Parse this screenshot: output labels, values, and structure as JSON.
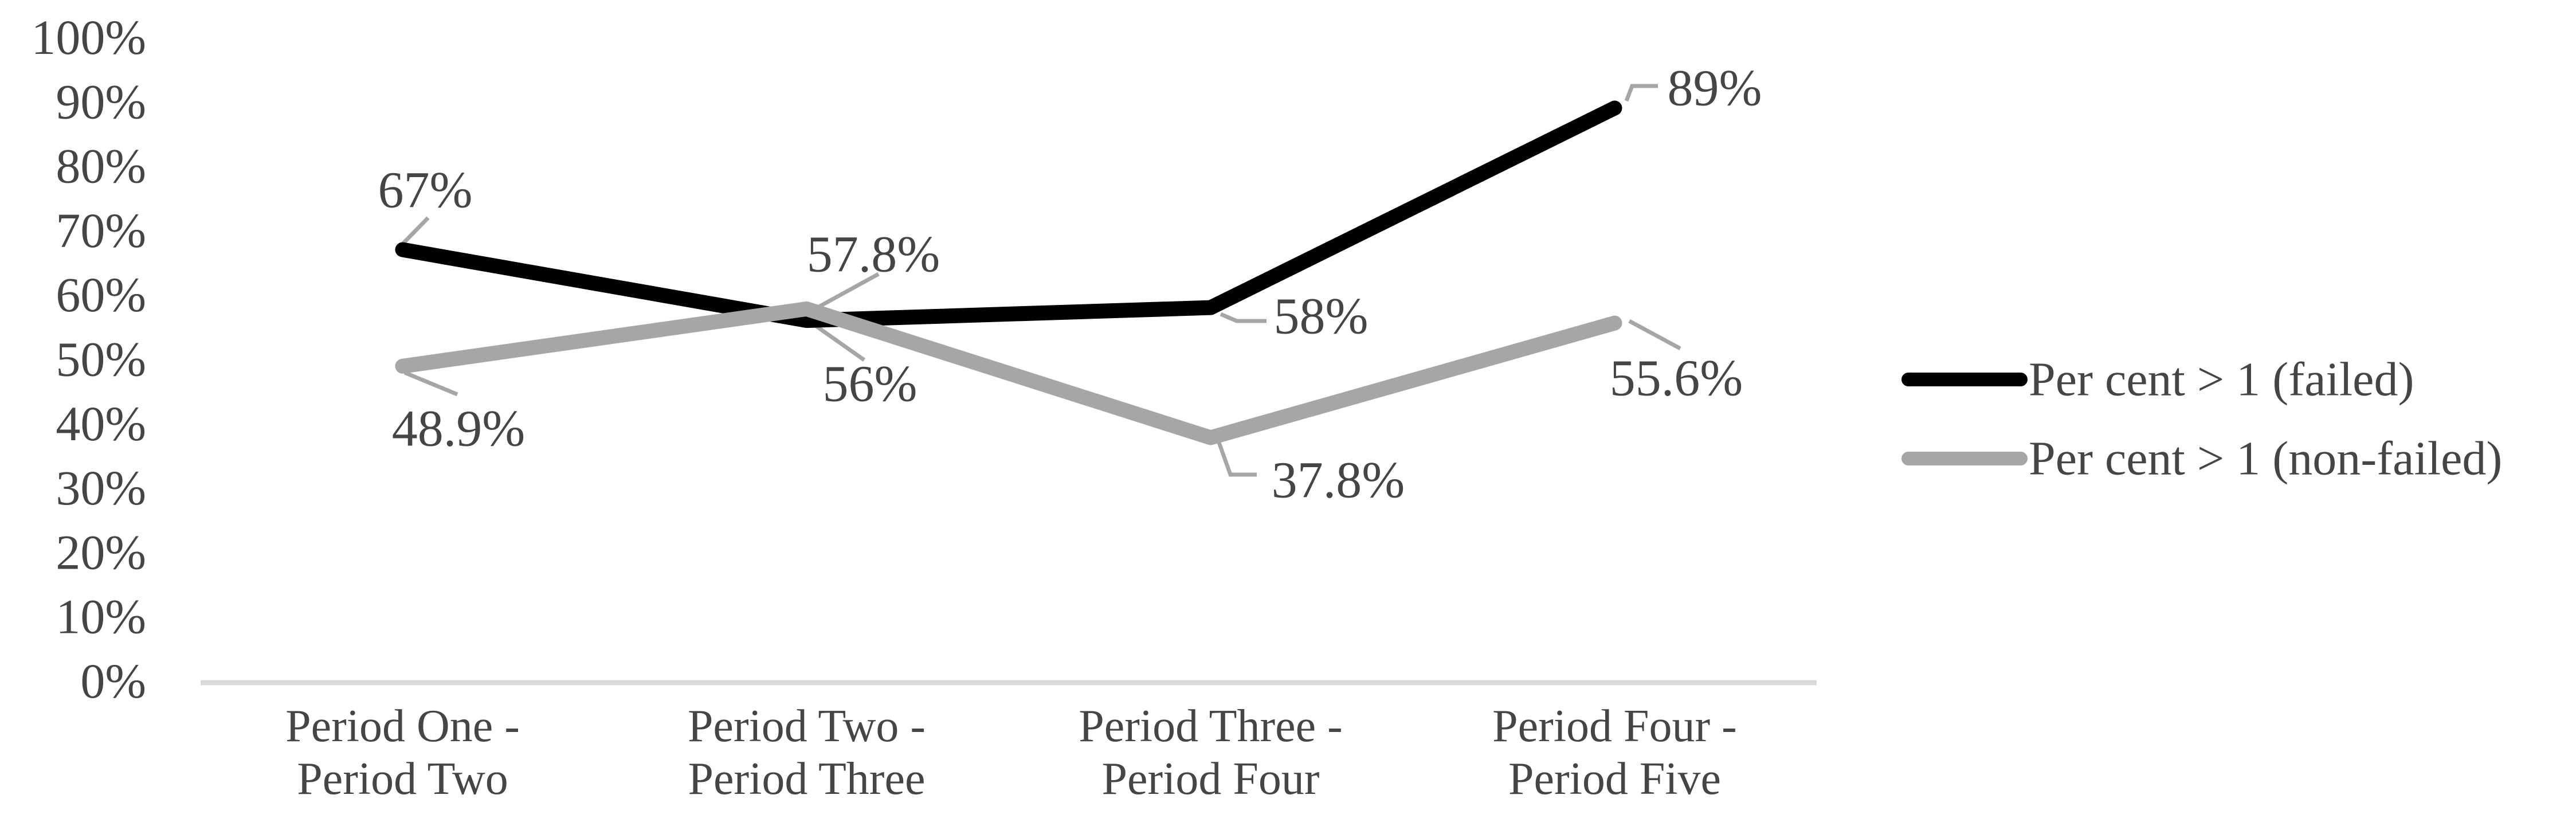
{
  "chart_data": {
    "type": "line",
    "categories": [
      [
        "Period One -",
        "Period Two"
      ],
      [
        "Period Two -",
        "Period Three"
      ],
      [
        "Period Three -",
        "Period Four"
      ],
      [
        "Period Four -",
        "Period Five"
      ]
    ],
    "series": [
      {
        "name": "Per cent > 1 (failed)",
        "color": "#000000",
        "values": [
          67,
          56,
          58,
          89
        ],
        "labels": [
          "67%",
          "56%",
          "58%",
          "89%"
        ]
      },
      {
        "name": "Per cent > 1 (non-failed)",
        "color": "#a6a6a6",
        "values": [
          48.9,
          57.8,
          37.8,
          55.6
        ],
        "labels": [
          "48.9%",
          "57.8%",
          "37.8%",
          "55.6%"
        ]
      }
    ],
    "y_axis": {
      "ticks": [
        "100%",
        "90%",
        "80%",
        "70%",
        "60%",
        "50%",
        "40%",
        "30%",
        "20%",
        "10%",
        "0%"
      ],
      "min": 0,
      "max": 100,
      "grid": false
    },
    "x_axis": {
      "baseline_visible": true
    },
    "legend_position": "right",
    "colors": {
      "text": "#454545",
      "axis_line": "#d9d9d9",
      "leader_line": "#a6a6a6",
      "series_failed": "#000000",
      "series_non_failed": "#a6a6a6"
    }
  }
}
